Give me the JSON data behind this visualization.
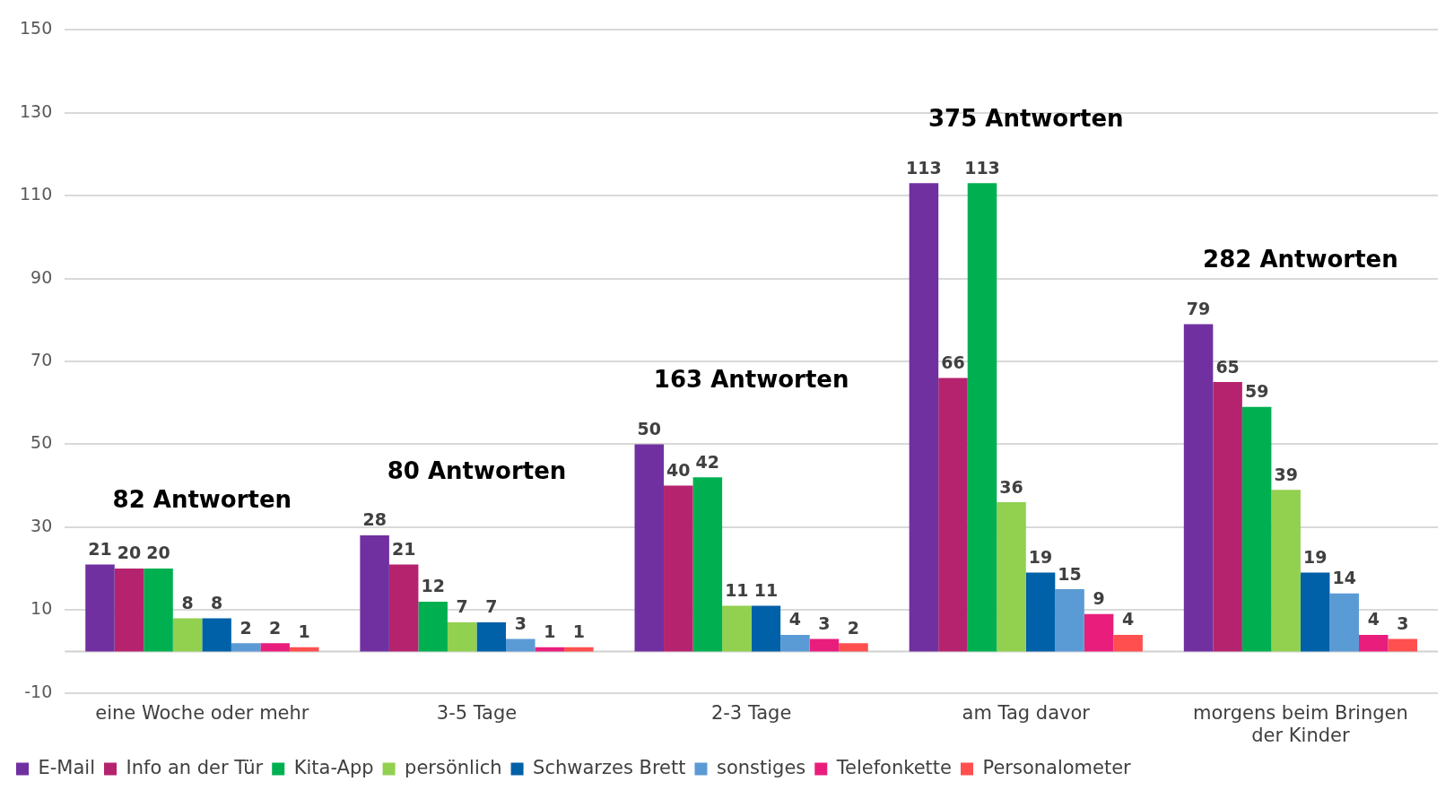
{
  "chart_data": {
    "type": "bar",
    "categories": [
      "eine Woche oder mehr",
      "3-5 Tage",
      "2-3 Tage",
      "am Tag davor",
      "morgens beim Bringen der Kinder"
    ],
    "series": [
      {
        "name": "E-Mail",
        "color": "#7030a0",
        "values": [
          21,
          28,
          50,
          113,
          79
        ]
      },
      {
        "name": "Info an der Tür",
        "color": "#b5236f",
        "values": [
          20,
          21,
          40,
          66,
          65
        ]
      },
      {
        "name": "Kita-App",
        "color": "#00b050",
        "values": [
          20,
          12,
          42,
          113,
          59
        ]
      },
      {
        "name": "persönlich",
        "color": "#92d050",
        "values": [
          8,
          7,
          11,
          36,
          39
        ]
      },
      {
        "name": "Schwarzes Brett",
        "color": "#0060a8",
        "values": [
          8,
          7,
          11,
          19,
          19
        ]
      },
      {
        "name": "sonstiges",
        "color": "#5b9bd5",
        "values": [
          2,
          3,
          4,
          15,
          14
        ]
      },
      {
        "name": "Telefonkette",
        "color": "#e91e7c",
        "values": [
          2,
          1,
          3,
          9,
          4
        ]
      },
      {
        "name": "Personalometer",
        "color": "#ff4f4f",
        "values": [
          1,
          1,
          2,
          4,
          3
        ]
      }
    ],
    "ylim": [
      -10,
      150
    ],
    "yticks": [
      -10,
      10,
      30,
      50,
      70,
      90,
      110,
      130,
      150
    ],
    "grid": "y",
    "legend": "bottom",
    "data_labels": true,
    "annotations": [
      "82 Antworten",
      "80 Antworten",
      "163 Antworten",
      "375 Antworten",
      "282 Antworten"
    ]
  }
}
